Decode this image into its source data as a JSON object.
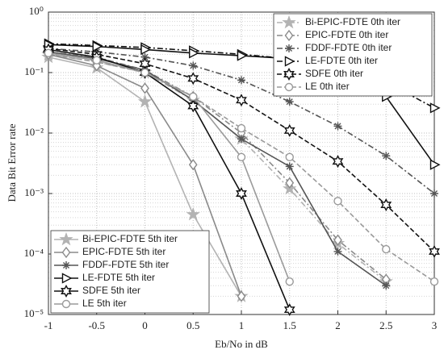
{
  "chart_data": {
    "type": "line",
    "xlabel": "Eb/No in dB",
    "ylabel": "Data Bit Error rate",
    "x": [
      -1,
      -0.5,
      0,
      0.5,
      1,
      1.5,
      2,
      2.5,
      3
    ],
    "xlim": [
      -1,
      3
    ],
    "xticks": [
      -1,
      -0.5,
      0,
      0.5,
      1,
      1.5,
      2,
      2.5,
      3
    ],
    "ylim": [
      1e-05,
      1
    ],
    "yscale": "log",
    "yticks": [
      {
        "value": 1e-05,
        "label": "10⁻⁵"
      },
      {
        "value": 0.0001,
        "label": "10⁻⁴"
      },
      {
        "value": 0.001,
        "label": "10⁻³"
      },
      {
        "value": 0.01,
        "label": "10⁻²"
      },
      {
        "value": 0.1,
        "label": "10⁻¹"
      },
      {
        "value": 1,
        "label": "10⁰"
      }
    ],
    "grid": true,
    "legend_loc": [
      "upper right",
      "lower left"
    ],
    "series": [
      {
        "name": "Bi-EPIC-FDTE 0th iter",
        "color": "#b3b3b3",
        "linestyle": "-.",
        "marker": "star",
        "values": [
          0.2,
          0.15,
          0.1,
          0.035,
          0.008,
          0.0012,
          0.00015,
          3.5e-05,
          null
        ]
      },
      {
        "name": "EPIC-FDTE 0th iter",
        "color": "#8a8a8a",
        "linestyle": "-.",
        "marker": "diamond",
        "values": [
          0.22,
          0.18,
          0.11,
          0.04,
          0.01,
          0.0015,
          0.00017,
          3.8e-05,
          null
        ]
      },
      {
        "name": "FDDF-FDTE 0th iter",
        "color": "#555555",
        "linestyle": "-.",
        "marker": "asterisk",
        "values": [
          0.25,
          0.22,
          0.18,
          0.13,
          0.075,
          0.033,
          0.013,
          0.0042,
          0.001
        ]
      },
      {
        "name": "LE-FDTE 0th iter",
        "color": "#111111",
        "linestyle": "-.",
        "marker": "triangle",
        "values": [
          0.3,
          0.28,
          0.26,
          0.23,
          0.2,
          0.17,
          0.12,
          0.07,
          0.026
        ]
      },
      {
        "name": "SDFE 0th iter",
        "color": "#111111",
        "linestyle": "--",
        "marker": "hexagram",
        "values": [
          0.25,
          0.2,
          0.14,
          0.08,
          0.035,
          0.011,
          0.0034,
          0.00065,
          0.00011
        ]
      },
      {
        "name": "LE 0th iter",
        "color": "#9a9a9a",
        "linestyle": "--",
        "marker": "circle",
        "values": [
          0.2,
          0.15,
          0.1,
          0.04,
          0.012,
          0.004,
          0.00075,
          0.00012,
          3.5e-05
        ]
      },
      {
        "name": "Bi-EPIC-FDTE 5th iter",
        "color": "#b3b3b3",
        "linestyle": "-",
        "marker": "star",
        "values": [
          0.18,
          0.12,
          0.033,
          0.00045,
          2e-05,
          null,
          null,
          null,
          null
        ]
      },
      {
        "name": "EPIC-FDTE 5th iter",
        "color": "#8a8a8a",
        "linestyle": "-",
        "marker": "diamond",
        "values": [
          0.2,
          0.13,
          0.055,
          0.003,
          2e-05,
          null,
          null,
          null,
          null
        ]
      },
      {
        "name": "FDDF-FDTE 5th iter",
        "color": "#555555",
        "linestyle": "-",
        "marker": "asterisk",
        "values": [
          0.22,
          0.17,
          0.11,
          0.035,
          0.008,
          0.0028,
          0.00011,
          3e-05,
          null
        ]
      },
      {
        "name": "LE-FDTE 5th iter",
        "color": "#111111",
        "linestyle": "-",
        "marker": "triangle",
        "values": [
          0.29,
          0.27,
          0.24,
          0.21,
          0.19,
          0.17,
          0.11,
          0.04,
          0.003
        ]
      },
      {
        "name": "SDFE 5th iter",
        "color": "#111111",
        "linestyle": "-",
        "marker": "hexagram",
        "values": [
          0.24,
          0.18,
          0.1,
          0.028,
          0.001,
          1.2e-05,
          null,
          null,
          null
        ]
      },
      {
        "name": "LE 5th iter",
        "color": "#9a9a9a",
        "linestyle": "-",
        "marker": "circle",
        "values": [
          0.21,
          0.16,
          0.1,
          0.04,
          0.004,
          3.5e-05,
          null,
          null,
          null
        ]
      }
    ]
  }
}
